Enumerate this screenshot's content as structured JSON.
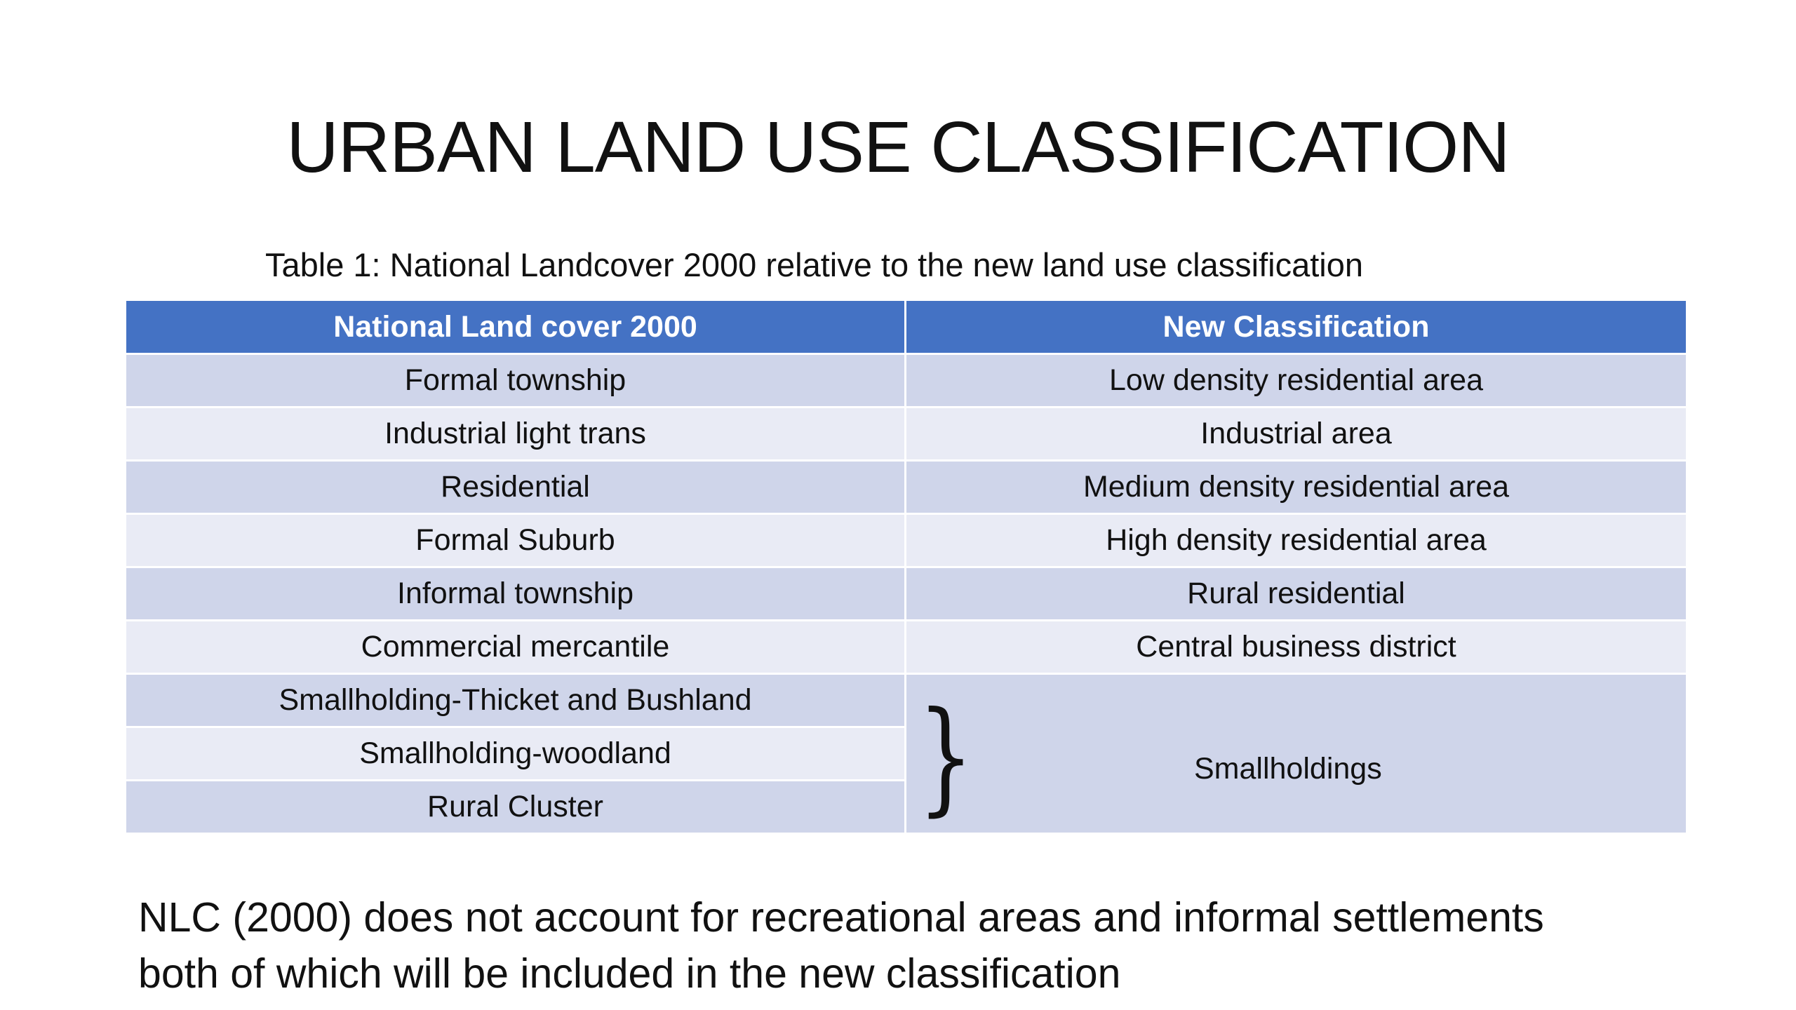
{
  "slide": {
    "title": "URBAN LAND USE CLASSIFICATION",
    "caption": "Table 1: National Landcover 2000 relative to the new land use classification",
    "note_lines": [
      "NLC (2000) does not account for recreational areas and informal settlements",
      "both of which will be included in the new classification"
    ]
  },
  "table": {
    "headers": [
      "National Land cover 2000",
      "New Classification"
    ],
    "rows": [
      [
        "Formal township",
        "Low density residential area"
      ],
      [
        "Industrial light trans",
        "Industrial area"
      ],
      [
        "Residential",
        "Medium density residential area"
      ],
      [
        "Formal Suburb",
        "High density residential area"
      ],
      [
        "Informal township",
        "Rural residential"
      ],
      [
        "Commercial mercantile",
        "Central business district"
      ]
    ],
    "grouped_rows": [
      "Smallholding-Thicket and Bushland",
      "Smallholding-woodland",
      "Rural Cluster"
    ],
    "grouped_label": "Smallholdings",
    "brace_symbol": "}"
  },
  "colors": {
    "header_bg": "#4472c4",
    "row_dark": "#cfd5ea",
    "row_light": "#e9ebf5"
  }
}
